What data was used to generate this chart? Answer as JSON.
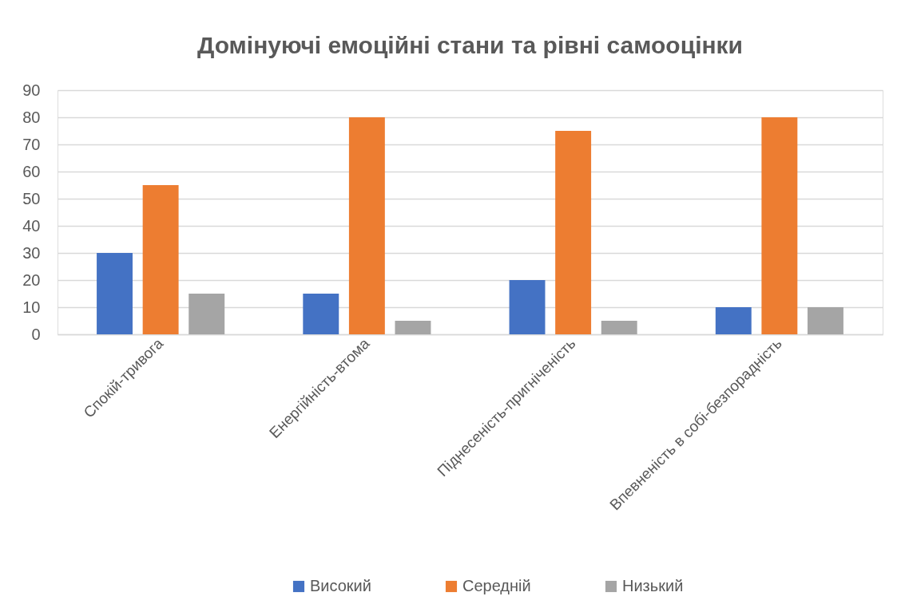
{
  "chart_data": {
    "type": "bar",
    "title": "Домінуючі емоційні стани та рівні самооцінки",
    "categories": [
      "Спокій-тривога",
      "Енергійність-втома",
      "Піднесеність-пригніченість",
      "Впевненість в собі-безпорадність"
    ],
    "series": [
      {
        "name": "Високий",
        "color": "#4472c4",
        "values": [
          30,
          15,
          20,
          10
        ]
      },
      {
        "name": "Середній",
        "color": "#ed7d31",
        "values": [
          55,
          80,
          75,
          80
        ]
      },
      {
        "name": "Низький",
        "color": "#a5a5a5",
        "values": [
          15,
          5,
          5,
          10
        ]
      }
    ],
    "ylim": [
      0,
      90
    ],
    "yticks": [
      0,
      10,
      20,
      30,
      40,
      50,
      60,
      70,
      80,
      90
    ],
    "grid": "y",
    "legend": "bottom"
  }
}
